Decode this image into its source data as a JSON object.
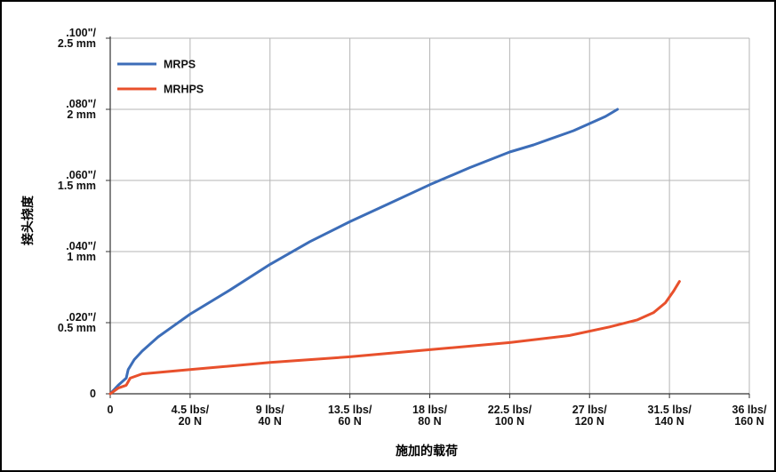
{
  "chart_data": {
    "type": "line",
    "xlabel": "施加的载荷",
    "ylabel": "接头挠度",
    "x_ticks": [
      {
        "value": 0,
        "lines": [
          "0"
        ]
      },
      {
        "value": 20,
        "lines": [
          "4.5 lbs/",
          "20 N"
        ]
      },
      {
        "value": 40,
        "lines": [
          "9 lbs/",
          "40 N"
        ]
      },
      {
        "value": 60,
        "lines": [
          "13.5 lbs/",
          "60 N"
        ]
      },
      {
        "value": 80,
        "lines": [
          "18 lbs/",
          "80 N"
        ]
      },
      {
        "value": 100,
        "lines": [
          "22.5 lbs/",
          "100 N"
        ]
      },
      {
        "value": 120,
        "lines": [
          "27 lbs/",
          "120 N"
        ]
      },
      {
        "value": 140,
        "lines": [
          "31.5 lbs/",
          "140 N"
        ]
      },
      {
        "value": 160,
        "lines": [
          "36 lbs/",
          "160 N"
        ]
      }
    ],
    "y_ticks": [
      {
        "value": 0,
        "lines": [
          "0"
        ]
      },
      {
        "value": 0.5,
        "lines": [
          ".020\"/",
          "0.5 mm"
        ]
      },
      {
        "value": 1.0,
        "lines": [
          ".040\"/",
          "1 mm"
        ]
      },
      {
        "value": 1.5,
        "lines": [
          ".060\"/",
          "1.5 mm"
        ]
      },
      {
        "value": 2.0,
        "lines": [
          ".080\"/",
          "2 mm"
        ]
      },
      {
        "value": 2.5,
        "lines": [
          ".100\"/",
          "2.5 mm"
        ]
      }
    ],
    "xlim": [
      0,
      160
    ],
    "ylim": [
      0,
      2.5
    ],
    "grid": true,
    "legend_position": "top-left",
    "series": [
      {
        "name": "MRPS",
        "color": "#3c6db8",
        "x": [
          0,
          2,
          4,
          4.5,
          6,
          8,
          12,
          16,
          20,
          30,
          40,
          50,
          60,
          70,
          80,
          90,
          100,
          106,
          110,
          116,
          120,
          124,
          127
        ],
        "y": [
          0,
          0.06,
          0.11,
          0.17,
          0.24,
          0.3,
          0.4,
          0.48,
          0.56,
          0.73,
          0.91,
          1.07,
          1.21,
          1.34,
          1.47,
          1.59,
          1.7,
          1.75,
          1.79,
          1.85,
          1.9,
          1.95,
          2.0
        ]
      },
      {
        "name": "MRHPS",
        "color": "#e8502c",
        "x": [
          0,
          2,
          4,
          5,
          8,
          12,
          20,
          40,
          60,
          80,
          100,
          115,
          125,
          132,
          136,
          139,
          141,
          142.5
        ],
        "y": [
          0,
          0.04,
          0.06,
          0.11,
          0.14,
          0.15,
          0.17,
          0.22,
          0.26,
          0.31,
          0.36,
          0.41,
          0.47,
          0.52,
          0.57,
          0.64,
          0.72,
          0.79
        ]
      }
    ]
  }
}
